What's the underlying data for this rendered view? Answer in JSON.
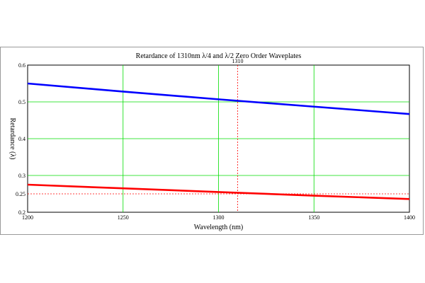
{
  "chart_data": {
    "type": "line",
    "title": "Retardance of 1310nm λ/4 and λ/2 Zero Order Waveplates",
    "xlabel": "Wavelength (nm)",
    "ylabel": "Retardance (λ)",
    "xlim": [
      1200,
      1400
    ],
    "ylim": [
      0.2,
      0.6
    ],
    "x_ticks": [
      "1200",
      "1250",
      "1300",
      "1350",
      "1400"
    ],
    "y_ticks": [
      "0.2",
      "0.3",
      "0.4",
      "0.5",
      "0.6"
    ],
    "grid": true,
    "series": [
      {
        "name": "",
        "color": "#0000ff",
        "x": [
          1200,
          1250,
          1300,
          1350,
          1400
        ],
        "y": [
          0.55,
          0.528,
          0.507,
          0.487,
          0.467
        ]
      },
      {
        "name": "",
        "color": "#ff0000",
        "x": [
          1200,
          1250,
          1300,
          1350,
          1400
        ],
        "y": [
          0.275,
          0.265,
          0.255,
          0.245,
          0.236
        ]
      }
    ],
    "annotations": [
      {
        "label": "1310",
        "axis": "x",
        "value": 1310,
        "color": "#ff0000",
        "style": "dotted"
      },
      {
        "label": "0.25",
        "axis": "y",
        "value": 0.25,
        "color": "#ff0000",
        "style": "dotted"
      }
    ]
  }
}
